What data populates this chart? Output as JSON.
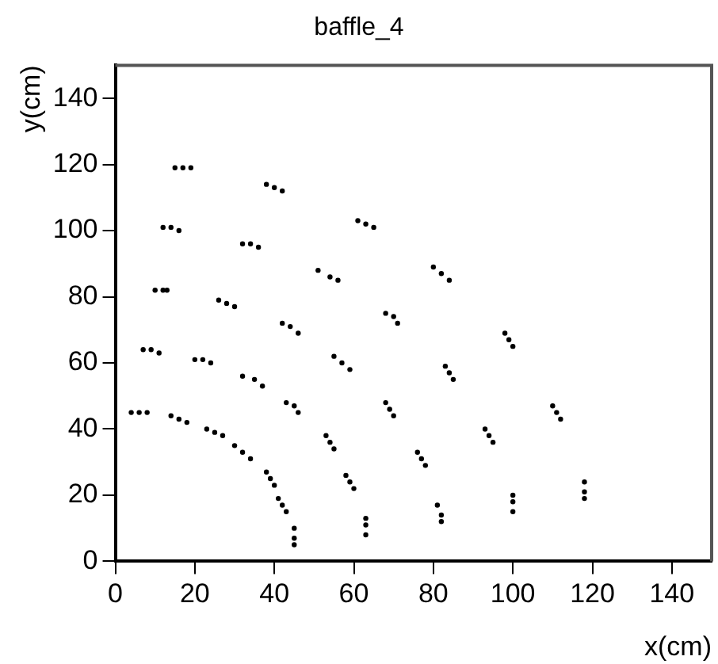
{
  "chart_data": {
    "type": "scatter",
    "title": "baffle_4",
    "xlabel": "x(cm)",
    "ylabel": "y(cm)",
    "x": [
      6,
      9,
      12,
      14,
      17,
      8,
      11,
      13,
      16,
      19,
      4,
      7,
      10,
      12,
      15,
      16,
      22,
      28,
      34,
      40,
      18,
      24,
      30,
      36,
      42,
      14,
      20,
      26,
      32,
      38,
      25,
      35,
      44,
      54,
      63,
      27,
      37,
      46,
      56,
      65,
      23,
      32,
      42,
      51,
      61,
      32,
      45,
      57,
      70,
      82,
      34,
      46,
      59,
      71,
      84,
      30,
      43,
      55,
      68,
      80,
      39,
      54,
      69,
      84,
      99,
      40,
      55,
      70,
      85,
      100,
      38,
      53,
      68,
      83,
      98,
      42,
      59,
      77,
      94,
      111,
      43,
      60,
      78,
      95,
      112,
      41,
      58,
      76,
      93,
      110,
      45,
      63,
      82,
      100,
      118,
      45,
      63,
      82,
      100,
      118,
      45,
      63,
      81,
      100,
      118
    ],
    "values": [
      45,
      64,
      82,
      101,
      119,
      45,
      63,
      82,
      100,
      119,
      45,
      64,
      82,
      101,
      119,
      43,
      61,
      78,
      96,
      113,
      42,
      60,
      77,
      95,
      112,
      44,
      61,
      79,
      96,
      114,
      39,
      55,
      71,
      86,
      102,
      38,
      53,
      69,
      85,
      101,
      40,
      56,
      72,
      88,
      103,
      33,
      47,
      60,
      74,
      87,
      31,
      45,
      58,
      72,
      85,
      35,
      48,
      62,
      75,
      89,
      25,
      36,
      46,
      57,
      67,
      23,
      34,
      44,
      55,
      65,
      27,
      38,
      48,
      59,
      69,
      17,
      24,
      31,
      38,
      45,
      15,
      22,
      29,
      36,
      43,
      19,
      26,
      33,
      40,
      47,
      7,
      11,
      14,
      18,
      21,
      5,
      8,
      12,
      15,
      19,
      10,
      13,
      17,
      20,
      24
    ],
    "color": "#000000",
    "marker": "circle",
    "grid": false,
    "legend": false,
    "xlim": [
      0,
      150
    ],
    "ylim": [
      0,
      150
    ],
    "xticks": [
      0,
      20,
      40,
      60,
      80,
      100,
      120,
      140
    ],
    "yticks": [
      0,
      20,
      40,
      60,
      80,
      100,
      120,
      140
    ]
  }
}
